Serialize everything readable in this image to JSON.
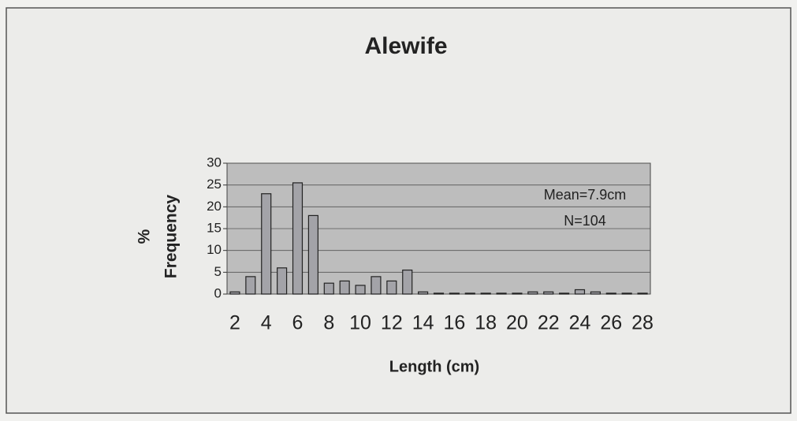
{
  "chart_data": {
    "type": "bar",
    "title": "Alewife",
    "ylabel": [
      "%",
      "Frequency"
    ],
    "xlabel": "Length (cm)",
    "annotations": [
      "Mean=7.9cm",
      "N=104"
    ],
    "categories": [
      2,
      null,
      4,
      null,
      6,
      null,
      8,
      null,
      10,
      null,
      12,
      null,
      14,
      null,
      16,
      null,
      18,
      null,
      20,
      null,
      22,
      null,
      24,
      null,
      26,
      null,
      28
    ],
    "values": [
      0.5,
      4,
      23,
      6,
      25.5,
      18,
      2.5,
      3,
      2,
      4,
      3,
      5.5,
      0.5,
      0.2,
      0.2,
      0.2,
      0.2,
      0.2,
      0.2,
      0.5,
      0.5,
      0.2,
      1,
      0.5,
      0.2,
      0.2,
      0.2
    ],
    "color": "#a3a3a8",
    "ylim": [
      0,
      30
    ],
    "yticks": [
      0,
      5,
      10,
      15,
      20,
      25,
      30
    ],
    "grid": true
  }
}
